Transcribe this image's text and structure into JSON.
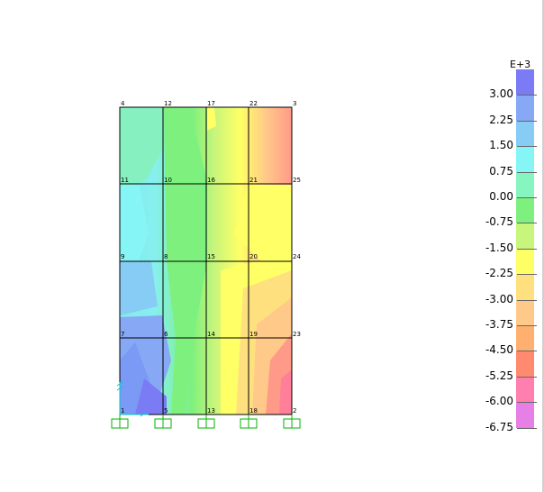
{
  "legend": {
    "exponent_label": "E+3",
    "values": [
      "3.00",
      "2.25",
      "1.50",
      "0.75",
      "0.00",
      "-0.75",
      "-1.50",
      "-2.25",
      "-3.00",
      "-3.75",
      "-4.50",
      "-5.25",
      "-6.00",
      "-6.75"
    ],
    "colors": [
      "#7b7bf5",
      "#86a8f5",
      "#86ccf5",
      "#86f5f5",
      "#86f5c0",
      "#7ef07e",
      "#c8f57b",
      "#ffff66",
      "#ffe07f",
      "#ffc98a",
      "#ffb070",
      "#ff8a70",
      "#ff7fae",
      "#e67fe6"
    ]
  },
  "nodes": [
    {
      "id": "4"
    },
    {
      "id": "12"
    },
    {
      "id": "17"
    },
    {
      "id": "22"
    },
    {
      "id": "3"
    },
    {
      "id": "11"
    },
    {
      "id": "10"
    },
    {
      "id": "16"
    },
    {
      "id": "21"
    },
    {
      "id": "25"
    },
    {
      "id": "9"
    },
    {
      "id": "8"
    },
    {
      "id": "15"
    },
    {
      "id": "20"
    },
    {
      "id": "24"
    },
    {
      "id": "7"
    },
    {
      "id": "6"
    },
    {
      "id": "14"
    },
    {
      "id": "19"
    },
    {
      "id": "23"
    },
    {
      "id": "1"
    },
    {
      "id": "5"
    },
    {
      "id": "13"
    },
    {
      "id": "18"
    },
    {
      "id": "2"
    }
  ],
  "colors": {
    "grid_line": "#000000",
    "support": "#00b400",
    "axis": "#00c8c8"
  }
}
